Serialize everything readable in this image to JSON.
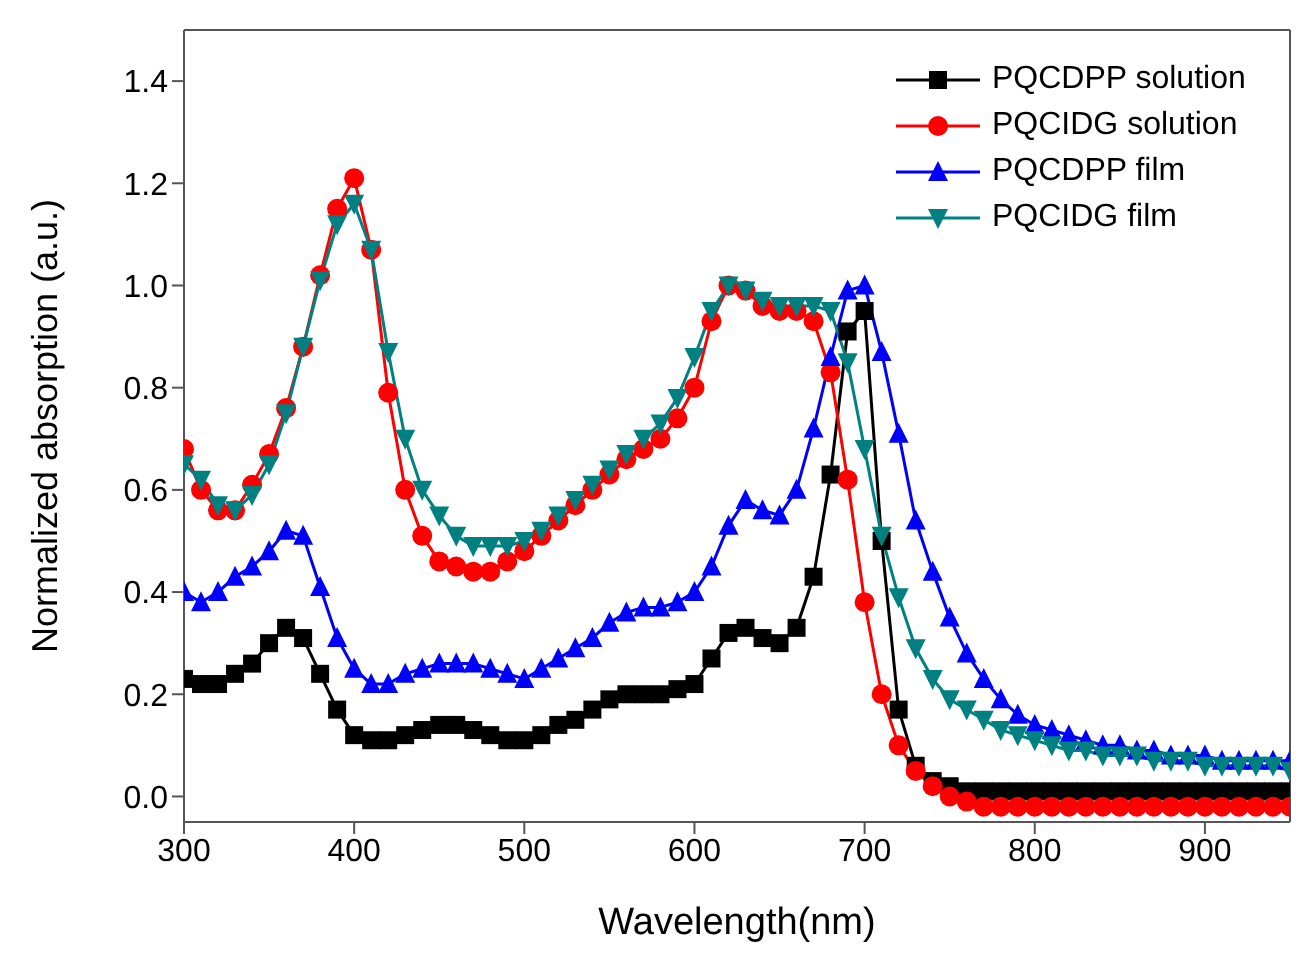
{
  "chart_data": {
    "type": "line",
    "xlabel": "Wavelength(nm)",
    "ylabel": "Normalized absorption (a.u.)",
    "x": [
      300,
      310,
      320,
      330,
      340,
      350,
      360,
      370,
      380,
      390,
      400,
      410,
      420,
      430,
      440,
      450,
      460,
      470,
      480,
      490,
      500,
      510,
      520,
      530,
      540,
      550,
      560,
      570,
      580,
      590,
      600,
      610,
      620,
      630,
      640,
      650,
      660,
      670,
      680,
      690,
      700,
      710,
      720,
      730,
      740,
      750,
      760,
      770,
      780,
      790,
      800,
      810,
      820,
      830,
      840,
      850,
      860,
      870,
      880,
      890,
      900,
      910,
      920,
      930,
      940,
      950
    ],
    "xlim": [
      300,
      950
    ],
    "xticks": [
      300,
      400,
      500,
      600,
      700,
      800,
      900
    ],
    "ylim": [
      -0.05,
      1.5
    ],
    "yticks": [
      {
        "value": 0,
        "label": "0.0"
      },
      {
        "value": 0.2,
        "label": "0.2"
      },
      {
        "value": 0.4,
        "label": "0.4"
      },
      {
        "value": 0.6,
        "label": "0.6"
      },
      {
        "value": 0.8,
        "label": "0.8"
      },
      {
        "value": 1,
        "label": "1.0"
      },
      {
        "value": 1.2,
        "label": "1.2"
      },
      {
        "value": 1.4,
        "label": "1.4"
      }
    ],
    "grid": false,
    "legend": "top right",
    "line_style": "solid",
    "series": [
      {
        "name": "PQCDPP solution",
        "color": "#000000",
        "marker": "square",
        "values": [
          0.23,
          0.22,
          0.22,
          0.24,
          0.26,
          0.3,
          0.33,
          0.31,
          0.24,
          0.17,
          0.12,
          0.11,
          0.11,
          0.12,
          0.13,
          0.14,
          0.14,
          0.13,
          0.12,
          0.11,
          0.11,
          0.12,
          0.14,
          0.15,
          0.17,
          0.19,
          0.2,
          0.2,
          0.2,
          0.21,
          0.22,
          0.27,
          0.32,
          0.33,
          0.31,
          0.3,
          0.33,
          0.43,
          0.63,
          0.91,
          0.95,
          0.5,
          0.17,
          0.06,
          0.03,
          0.02,
          0.01,
          0.01,
          0.01,
          0.01,
          0.01,
          0.01,
          0.01,
          0.01,
          0.01,
          0.01,
          0.01,
          0.01,
          0.01,
          0.01,
          0.01,
          0.01,
          0.01,
          0.01,
          0.01,
          0.01
        ]
      },
      {
        "name": "PQCIDG solution",
        "color": "#ff0000",
        "marker": "circle",
        "values": [
          0.68,
          0.6,
          0.56,
          0.56,
          0.61,
          0.67,
          0.76,
          0.88,
          1.02,
          1.15,
          1.21,
          1.07,
          0.79,
          0.6,
          0.51,
          0.46,
          0.45,
          0.44,
          0.44,
          0.46,
          0.48,
          0.51,
          0.54,
          0.57,
          0.6,
          0.63,
          0.66,
          0.68,
          0.7,
          0.74,
          0.8,
          0.93,
          1.0,
          0.99,
          0.96,
          0.95,
          0.95,
          0.93,
          0.83,
          0.62,
          0.38,
          0.2,
          0.1,
          0.05,
          0.02,
          0.0,
          -0.01,
          -0.02,
          -0.02,
          -0.02,
          -0.02,
          -0.02,
          -0.02,
          -0.02,
          -0.02,
          -0.02,
          -0.02,
          -0.02,
          -0.02,
          -0.02,
          -0.02,
          -0.02,
          -0.02,
          -0.02,
          -0.02,
          -0.02
        ]
      },
      {
        "name": "PQCDPP film",
        "color": "#0000ff",
        "marker": "triangle",
        "values": [
          0.4,
          0.38,
          0.4,
          0.43,
          0.45,
          0.48,
          0.52,
          0.51,
          0.41,
          0.31,
          0.25,
          0.22,
          0.22,
          0.24,
          0.25,
          0.26,
          0.26,
          0.26,
          0.25,
          0.24,
          0.23,
          0.25,
          0.27,
          0.29,
          0.31,
          0.34,
          0.36,
          0.37,
          0.37,
          0.38,
          0.4,
          0.45,
          0.53,
          0.58,
          0.56,
          0.55,
          0.6,
          0.72,
          0.86,
          0.99,
          1.0,
          0.87,
          0.71,
          0.54,
          0.44,
          0.35,
          0.28,
          0.23,
          0.19,
          0.16,
          0.14,
          0.13,
          0.12,
          0.11,
          0.1,
          0.1,
          0.09,
          0.09,
          0.08,
          0.08,
          0.08,
          0.07,
          0.07,
          0.07,
          0.07,
          0.07
        ]
      },
      {
        "name": "PQCIDG film",
        "color": "#008080",
        "marker": "triangle-down",
        "values": [
          0.65,
          0.62,
          0.57,
          0.56,
          0.59,
          0.65,
          0.75,
          0.88,
          1.01,
          1.12,
          1.16,
          1.07,
          0.87,
          0.7,
          0.6,
          0.55,
          0.51,
          0.49,
          0.49,
          0.49,
          0.5,
          0.52,
          0.55,
          0.58,
          0.61,
          0.64,
          0.67,
          0.7,
          0.73,
          0.78,
          0.86,
          0.95,
          1.0,
          0.99,
          0.97,
          0.96,
          0.96,
          0.96,
          0.95,
          0.85,
          0.68,
          0.51,
          0.39,
          0.29,
          0.23,
          0.19,
          0.17,
          0.15,
          0.13,
          0.12,
          0.11,
          0.1,
          0.09,
          0.09,
          0.08,
          0.08,
          0.08,
          0.07,
          0.07,
          0.07,
          0.06,
          0.06,
          0.06,
          0.06,
          0.06,
          0.05
        ]
      }
    ]
  }
}
